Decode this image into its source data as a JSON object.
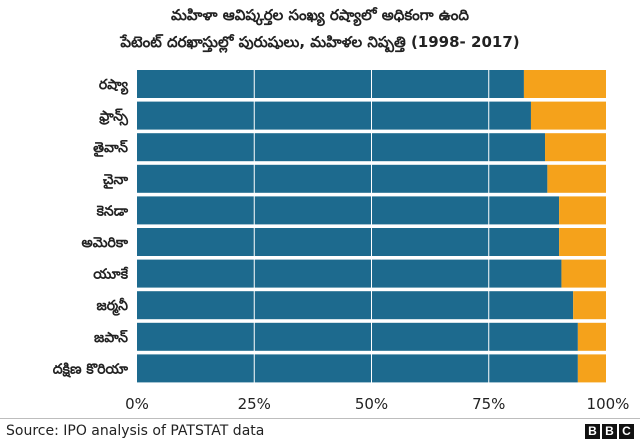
{
  "header": {
    "title_line1": "మహిళా ఆవిష్కర్తల సంఖ్య రష్యాలో అధికంగా ఉంది",
    "title_line2": "పేటెంట్ దరఖాస్తుల్లో పురుషులు, మహిళల నిష్పత్తి (1998- 2017)"
  },
  "footer": {
    "source": "Source: IPO analysis of PATSTAT data",
    "logo_letters": [
      "B",
      "B",
      "C"
    ]
  },
  "colors": {
    "men": "#1d6a8e",
    "women": "#f5a21b",
    "grid": "#ffffff"
  },
  "chart_data": {
    "type": "bar",
    "orientation": "horizontal",
    "stacked": true,
    "percent": true,
    "categories": [
      "రష్యా",
      "ఫ్రాన్స్",
      "తైవాన్",
      "చైనా",
      "కెనడా",
      "అమెరికా",
      "యూకే",
      "జర్మనీ",
      "జపాన్",
      "దక్షిణ కొరియా"
    ],
    "series": [
      {
        "values": [
          82.5,
          84,
          87,
          87.5,
          90,
          90,
          90.5,
          93,
          94,
          94
        ]
      },
      {
        "values": [
          17.5,
          16,
          13,
          12.5,
          10,
          10,
          9.5,
          7,
          6,
          6
        ]
      }
    ],
    "xlim": [
      0,
      100
    ],
    "xticks": [
      "0%",
      "25%",
      "50%",
      "75%",
      "100%"
    ],
    "grid": true
  }
}
